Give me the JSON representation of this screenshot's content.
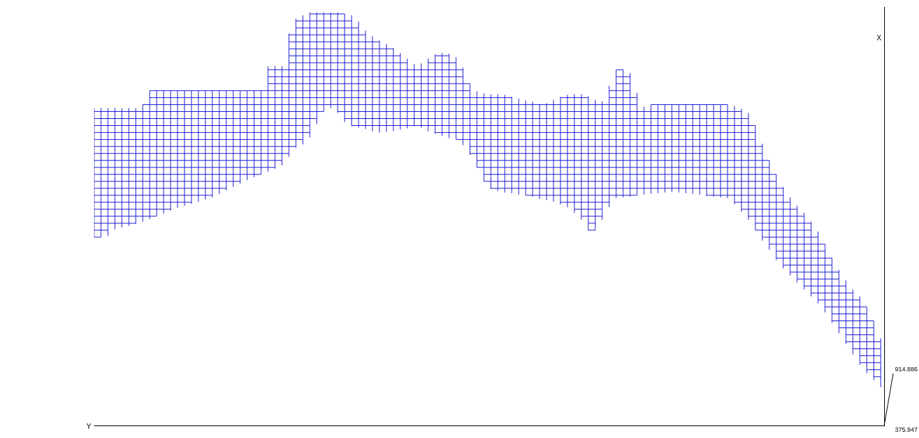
{
  "chart_data": {
    "type": "surface",
    "x_label": "X",
    "y_label": "Y",
    "xlim": [
      0,
      600
    ],
    "ylim": [
      0,
      1135
    ],
    "zlim": [
      375.947,
      914.886
    ],
    "grid": false,
    "tick_labels": false,
    "color": "#1a1ad6",
    "y": [
      0,
      10,
      20,
      30,
      40,
      50,
      60,
      70,
      80,
      90,
      100,
      110,
      120,
      130,
      140,
      150,
      160,
      170,
      180,
      190,
      200,
      210,
      220,
      230,
      240,
      250,
      260,
      270,
      280,
      290,
      300,
      310,
      320,
      330,
      340,
      350,
      360,
      370,
      380,
      390,
      400,
      410,
      420,
      430,
      440,
      450,
      460,
      470,
      480,
      490,
      500,
      510,
      520,
      530,
      540,
      550,
      560,
      570,
      580,
      590,
      600,
      610,
      620,
      630,
      640,
      650,
      660,
      670,
      680,
      690,
      700,
      710,
      720,
      730,
      740,
      750,
      760,
      770,
      780,
      790,
      800,
      810,
      820,
      830,
      840,
      850,
      860,
      870,
      880,
      890,
      900,
      910,
      920,
      930,
      940,
      950,
      960,
      970,
      980,
      990,
      1000,
      1010,
      1020,
      1030,
      1040,
      1050,
      1060,
      1070,
      1080,
      1090,
      1100,
      1110,
      1120,
      1130
    ],
    "x_range": [
      [
        270,
        455
      ],
      [
        270,
        455
      ],
      [
        272,
        455
      ],
      [
        281,
        455
      ],
      [
        284,
        455
      ],
      [
        286,
        455
      ],
      [
        289,
        455
      ],
      [
        292,
        460
      ],
      [
        296,
        480
      ],
      [
        300,
        480
      ],
      [
        304,
        480
      ],
      [
        308,
        480
      ],
      [
        312,
        480
      ],
      [
        315,
        480
      ],
      [
        318,
        480
      ],
      [
        321,
        480
      ],
      [
        324,
        480
      ],
      [
        327,
        480
      ],
      [
        332,
        480
      ],
      [
        337,
        480
      ],
      [
        342,
        480
      ],
      [
        347,
        480
      ],
      [
        352,
        480
      ],
      [
        356,
        480
      ],
      [
        360,
        480
      ],
      [
        364,
        515
      ],
      [
        368,
        515
      ],
      [
        373,
        515
      ],
      [
        385,
        562
      ],
      [
        398,
        583
      ],
      [
        403,
        588
      ],
      [
        413,
        592
      ],
      [
        432,
        592
      ],
      [
        450,
        592
      ],
      [
        455,
        592
      ],
      [
        448,
        592
      ],
      [
        435,
        590
      ],
      [
        429,
        588
      ],
      [
        427,
        579
      ],
      [
        425,
        566
      ],
      [
        422,
        558
      ],
      [
        420,
        552
      ],
      [
        421,
        547
      ],
      [
        422,
        541
      ],
      [
        424,
        534
      ],
      [
        426,
        526
      ],
      [
        429,
        518
      ],
      [
        427,
        519
      ],
      [
        422,
        526
      ],
      [
        418,
        532
      ],
      [
        415,
        534
      ],
      [
        412,
        533
      ],
      [
        410,
        528
      ],
      [
        402,
        513
      ],
      [
        388,
        490
      ],
      [
        370,
        479
      ],
      [
        350,
        476
      ],
      [
        339,
        475
      ],
      [
        336,
        475
      ],
      [
        334,
        474
      ],
      [
        333,
        471
      ],
      [
        331,
        469
      ],
      [
        330,
        466
      ],
      [
        328,
        464
      ],
      [
        325,
        461
      ],
      [
        323,
        462
      ],
      [
        321,
        467
      ],
      [
        317,
        471
      ],
      [
        313,
        474
      ],
      [
        305,
        475
      ],
      [
        295,
        475
      ],
      [
        280,
        472
      ],
      [
        280,
        467
      ],
      [
        295,
        465
      ],
      [
        313,
        487
      ],
      [
        326,
        510
      ],
      [
        327,
        510
      ],
      [
        328,
        505
      ],
      [
        330,
        477
      ],
      [
        331,
        457
      ],
      [
        332,
        460
      ],
      [
        333,
        460
      ],
      [
        334,
        460
      ],
      [
        335,
        460
      ],
      [
        334,
        460
      ],
      [
        333,
        460
      ],
      [
        332,
        460
      ],
      [
        331,
        460
      ],
      [
        329,
        460
      ],
      [
        328,
        460
      ],
      [
        327,
        460
      ],
      [
        326,
        460
      ],
      [
        317,
        458
      ],
      [
        306,
        454
      ],
      [
        295,
        448
      ],
      [
        280,
        430
      ],
      [
        265,
        404
      ],
      [
        252,
        380
      ],
      [
        237,
        360
      ],
      [
        225,
        342
      ],
      [
        215,
        327
      ],
      [
        205,
        315
      ],
      [
        195,
        305
      ],
      [
        185,
        292
      ],
      [
        175,
        278
      ],
      [
        162,
        260
      ],
      [
        147,
        240
      ],
      [
        132,
        223
      ],
      [
        117,
        208
      ],
      [
        102,
        195
      ],
      [
        87,
        185
      ],
      [
        75,
        170
      ],
      [
        65,
        150
      ],
      [
        55,
        125
      ]
    ],
    "x_rows": [
      70,
      80,
      90,
      100,
      110,
      120,
      130,
      140,
      150,
      160,
      170,
      180,
      190,
      200,
      210,
      220,
      230,
      240,
      250,
      260,
      270,
      280,
      290,
      300,
      310,
      320,
      330,
      340,
      350,
      360,
      370,
      380,
      390,
      400,
      410,
      420,
      430,
      440,
      450,
      460,
      470,
      480,
      490,
      500,
      510,
      520,
      530,
      540,
      550,
      560,
      570,
      580,
      590
    ]
  }
}
